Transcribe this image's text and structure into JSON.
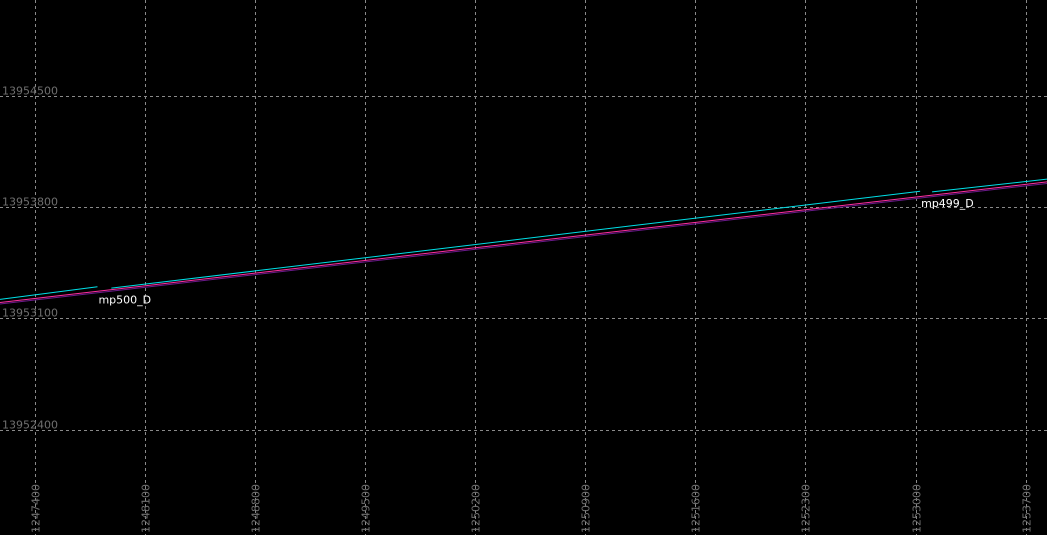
{
  "canvas": {
    "background": "#000000",
    "grid_color": "#8a8a8a",
    "label_color": "#6f6f6f"
  },
  "x_axis": {
    "labels": [
      "1247400",
      "1248100",
      "1248800",
      "1249500",
      "1250200",
      "1250900",
      "1251600",
      "1252300",
      "1253000",
      "1253700"
    ],
    "range": [
      1247177,
      1253836
    ],
    "step": 700
  },
  "y_axis": {
    "labels": [
      "13954500",
      "13953800",
      "13953100",
      "13952400"
    ],
    "range": [
      13951736,
      13955104
    ],
    "step": 700
  },
  "lines": [
    {
      "name": "centerline",
      "color": "#00e0e8",
      "segments": [
        [
          [
            1247177,
            13953219
          ],
          [
            1247797,
            13953299
          ]
        ],
        [
          [
            1247885,
            13953290
          ],
          [
            1253029,
            13953900
          ]
        ],
        [
          [
            1253105,
            13953896
          ],
          [
            1253836,
            13953976
          ]
        ]
      ]
    },
    {
      "name": "lane-edge",
      "color": "#ff2ea0",
      "segments": [
        [
          [
            1247177,
            13953200
          ],
          [
            1253836,
            13953959
          ]
        ]
      ]
    },
    {
      "name": "lane-edge-dark",
      "color": "#6a1a8a",
      "segments": [
        [
          [
            1247177,
            13953190
          ],
          [
            1253836,
            13953949
          ]
        ]
      ]
    }
  ],
  "markers": [
    {
      "label": "mp500_D",
      "x": 1247797,
      "y": 13953264
    },
    {
      "label": "mp499_D",
      "x": 1253029,
      "y": 13953869
    }
  ]
}
